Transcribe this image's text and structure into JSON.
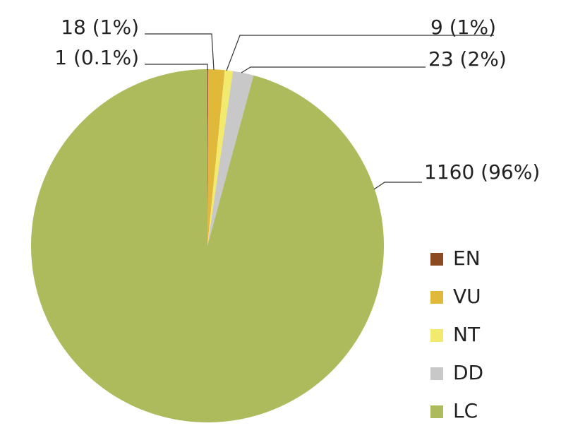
{
  "chart_data": {
    "type": "pie",
    "categories": [
      "EN",
      "VU",
      "NT",
      "DD",
      "LC"
    ],
    "values": [
      1,
      18,
      9,
      23,
      1160
    ],
    "value_labels": [
      "1 (0.1%)",
      "18 (1%)",
      "9 (1%)",
      "23 (2%)",
      "1160 (96%)"
    ],
    "colors": [
      "#8b4a1f",
      "#e0b83a",
      "#f2ea6c",
      "#c8c8c8",
      "#adbb5c"
    ],
    "legend": "right"
  }
}
